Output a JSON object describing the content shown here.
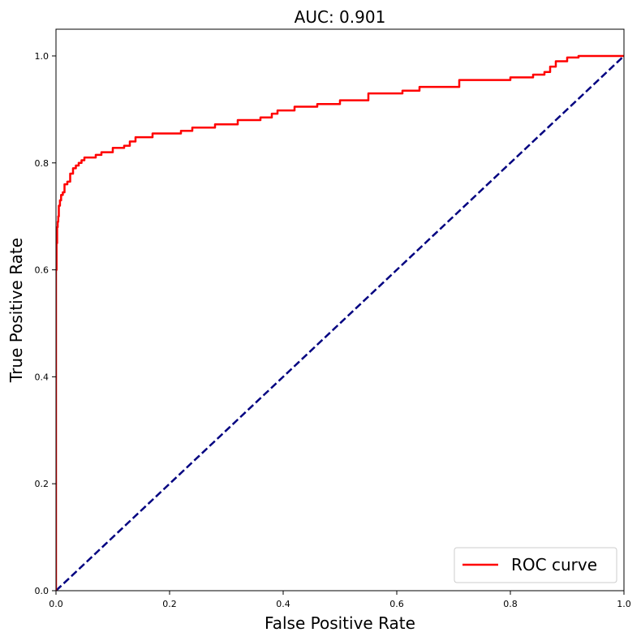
{
  "chart_data": {
    "type": "line",
    "title": "AUC: 0.901",
    "xlabel": "False Positive Rate",
    "ylabel": "True Positive Rate",
    "xlim": [
      0,
      1
    ],
    "ylim": [
      0,
      1.05
    ],
    "xticks": [
      0.0,
      0.2,
      0.4,
      0.6,
      0.8,
      1.0
    ],
    "xtick_labels": [
      "0.0",
      "0.2",
      "0.4",
      "0.6",
      "0.8",
      "1.0"
    ],
    "yticks": [
      0.0,
      0.2,
      0.4,
      0.6,
      0.8,
      1.0
    ],
    "ytick_labels": [
      "0.0",
      "0.2",
      "0.4",
      "0.6",
      "0.8",
      "1.0"
    ],
    "grid": false,
    "legend_position": "lower-right",
    "series": [
      {
        "name": "ROC curve",
        "color": "#ff0000",
        "style": "solid",
        "x": [
          0.0,
          0.0,
          0.001,
          0.002,
          0.003,
          0.004,
          0.005,
          0.007,
          0.009,
          0.012,
          0.015,
          0.02,
          0.025,
          0.03,
          0.035,
          0.04,
          0.045,
          0.05,
          0.07,
          0.08,
          0.1,
          0.12,
          0.13,
          0.14,
          0.17,
          0.22,
          0.24,
          0.28,
          0.32,
          0.36,
          0.38,
          0.39,
          0.42,
          0.46,
          0.5,
          0.55,
          0.61,
          0.64,
          0.71,
          0.8,
          0.84,
          0.86,
          0.87,
          0.88,
          0.9,
          0.92,
          1.0
        ],
        "y": [
          0.0,
          0.5,
          0.6,
          0.65,
          0.68,
          0.69,
          0.7,
          0.72,
          0.73,
          0.74,
          0.745,
          0.76,
          0.765,
          0.78,
          0.79,
          0.795,
          0.8,
          0.805,
          0.81,
          0.815,
          0.82,
          0.828,
          0.832,
          0.84,
          0.848,
          0.855,
          0.86,
          0.866,
          0.872,
          0.88,
          0.885,
          0.892,
          0.898,
          0.905,
          0.91,
          0.917,
          0.93,
          0.935,
          0.942,
          0.955,
          0.96,
          0.965,
          0.97,
          0.98,
          0.99,
          0.997,
          1.0
        ]
      },
      {
        "name": "",
        "color": "#000080",
        "style": "dashed",
        "x": [
          0,
          1
        ],
        "y": [
          0,
          1
        ]
      }
    ]
  }
}
